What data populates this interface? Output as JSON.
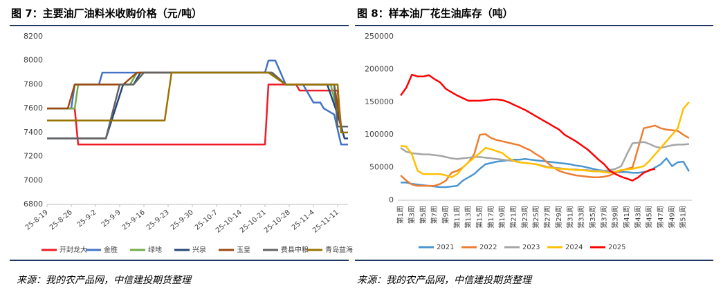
{
  "chart_data": [
    {
      "type": "line",
      "title": "图 7：主要油厂油料米收购价格（元/吨）",
      "source": "来源：我的农产品网，中信建投期货整理",
      "xlim": [
        "25-8-19",
        "25-11-14"
      ],
      "xticks": [
        "25-8-19",
        "25-8-26",
        "25-9-2",
        "25-9-9",
        "25-9-16",
        "25-9-23",
        "25-9-30",
        "25-10-7",
        "25-10-14",
        "25-10-21",
        "25-10-28",
        "25-11-4",
        "25-11-11"
      ],
      "ylim": [
        6800,
        8200
      ],
      "yticks": [
        6800,
        7000,
        7200,
        7400,
        7600,
        7800,
        8000,
        8200
      ],
      "series": [
        {
          "name": "开封龙大",
          "color": "#ee1c25",
          "x": [
            "25-8-19",
            "25-8-27",
            "25-8-28",
            "25-10-21",
            "25-10-22",
            "25-10-30",
            "25-10-31",
            "25-11-11",
            "25-11-12",
            "25-11-14"
          ],
          "values": [
            7600,
            7600,
            7300,
            7300,
            7800,
            7800,
            7750,
            7750,
            7450,
            7450
          ]
        },
        {
          "name": "金胜",
          "color": "#4472c4",
          "x": [
            "25-8-19",
            "25-8-26",
            "25-8-27",
            "25-9-3",
            "25-9-4",
            "25-10-21",
            "25-10-22",
            "25-10-24",
            "25-10-27",
            "25-11-1",
            "25-11-4",
            "25-11-6",
            "25-11-7",
            "25-11-10",
            "25-11-12",
            "25-11-14"
          ],
          "values": [
            7600,
            7600,
            7800,
            7800,
            7900,
            7900,
            8000,
            8000,
            7800,
            7800,
            7650,
            7650,
            7600,
            7550,
            7300,
            7300
          ]
        },
        {
          "name": "绿地",
          "color": "#70ad47",
          "x": [
            "25-8-19",
            "25-8-27",
            "25-8-28",
            "25-9-12",
            "25-9-14",
            "25-10-22",
            "25-10-27",
            "25-11-9",
            "25-11-12",
            "25-11-14"
          ],
          "values": [
            7600,
            7600,
            7800,
            7800,
            7900,
            7900,
            7800,
            7800,
            7450,
            7450
          ]
        },
        {
          "name": "兴泉",
          "color": "#264478",
          "x": [
            "25-8-19",
            "25-9-5",
            "25-9-10",
            "25-9-13",
            "25-9-15",
            "25-10-23",
            "25-10-27",
            "25-11-8",
            "25-11-11",
            "25-11-13",
            "25-11-14"
          ],
          "values": [
            7350,
            7350,
            7800,
            7800,
            7900,
            7900,
            7800,
            7800,
            7550,
            7350,
            7350
          ]
        },
        {
          "name": "玉皇",
          "color": "#9e480e",
          "x": [
            "25-8-19",
            "25-8-25",
            "25-8-27",
            "25-9-10",
            "25-9-14",
            "25-10-23",
            "25-10-27",
            "25-11-10",
            "25-11-12",
            "25-11-14"
          ],
          "values": [
            7600,
            7600,
            7800,
            7800,
            7900,
            7900,
            7800,
            7800,
            7450,
            7450
          ]
        },
        {
          "name": "费县中粮",
          "color": "#636363",
          "x": [
            "25-8-19",
            "25-9-5",
            "25-9-9",
            "25-9-13",
            "25-9-16",
            "25-10-23",
            "25-10-27",
            "25-11-10",
            "25-11-11",
            "25-11-14"
          ],
          "values": [
            7350,
            7350,
            7800,
            7800,
            7900,
            7900,
            7800,
            7800,
            7450,
            7450
          ]
        },
        {
          "name": "青岛益海",
          "color": "#997300",
          "x": [
            "25-8-19",
            "25-9-22",
            "25-9-24",
            "25-10-22",
            "25-10-27",
            "25-11-11",
            "25-11-12",
            "25-11-14"
          ],
          "values": [
            7500,
            7500,
            7900,
            7900,
            7800,
            7800,
            7400,
            7400
          ]
        }
      ]
    },
    {
      "type": "line",
      "title": "图 8：样本油厂花生油库存（吨）",
      "source": "来源：我的农产品网，中信建投期货整理",
      "categories": [
        "第1周",
        null,
        "第3周",
        null,
        "第5周",
        null,
        "第7周",
        null,
        "第9周",
        null,
        "第11周",
        null,
        "第13周",
        null,
        "第15周",
        null,
        "第17周",
        null,
        "第19周",
        null,
        "第21周",
        null,
        "第23周",
        null,
        "第25周",
        null,
        "第27周",
        null,
        "第29周",
        null,
        "第31周",
        null,
        "第33周",
        null,
        "第35周",
        null,
        "第37周",
        null,
        "第39周",
        null,
        "第41周",
        null,
        "第43周",
        null,
        "第45周",
        null,
        "第47周",
        null,
        "第49周",
        null,
        "第51周",
        null
      ],
      "ylim": [
        0,
        250000
      ],
      "yticks": [
        0,
        50000,
        100000,
        150000,
        200000,
        250000
      ],
      "series": [
        {
          "name": "2021",
          "color": "#4a96d2",
          "values": [
            27000,
            27000,
            25000,
            24000,
            23000,
            22000,
            21000,
            20000,
            20000,
            21000,
            22000,
            30000,
            35000,
            40000,
            48000,
            55000,
            57000,
            59000,
            60000,
            61000,
            62000,
            62000,
            63000,
            62000,
            61000,
            60000,
            59000,
            58000,
            57000,
            56000,
            55000,
            53000,
            52000,
            50000,
            48000,
            46000,
            45000,
            44000,
            43000,
            43000,
            43000,
            42000,
            42000,
            43000,
            45000,
            50000,
            55000,
            64000,
            52000,
            58000,
            59000,
            44000
          ]
        },
        {
          "name": "2022",
          "color": "#ed7d31",
          "values": [
            38000,
            30000,
            24000,
            22000,
            22000,
            22000,
            22000,
            25000,
            30000,
            42000,
            45000,
            50000,
            58000,
            70000,
            100000,
            101000,
            95000,
            92000,
            90000,
            88000,
            86000,
            84000,
            80000,
            76000,
            70000,
            65000,
            57000,
            50000,
            45000,
            42000,
            40000,
            38000,
            37000,
            36000,
            35000,
            35000,
            36000,
            38000,
            42000,
            45000,
            48000,
            50000,
            80000,
            110000,
            112000,
            114000,
            110000,
            108000,
            107000,
            106000,
            100000,
            95000
          ]
        },
        {
          "name": "2023",
          "color": "#a5a5a5",
          "values": [
            80000,
            74000,
            72000,
            71000,
            70000,
            70000,
            69000,
            68000,
            66000,
            64000,
            63000,
            64000,
            65000,
            66000,
            66000,
            65000,
            64000,
            63000,
            62000,
            61000,
            60000,
            58000,
            57000,
            56000,
            55000,
            53000,
            51000,
            50000,
            49000,
            48000,
            47000,
            47000,
            46000,
            46000,
            45000,
            45000,
            45000,
            46000,
            48000,
            52000,
            70000,
            87000,
            88000,
            89000,
            86000,
            82000,
            80000,
            82000,
            84000,
            85000,
            85000,
            86000
          ]
        },
        {
          "name": "2024",
          "color": "#ffc000",
          "values": [
            83000,
            82000,
            70000,
            45000,
            40000,
            40000,
            40000,
            40000,
            38000,
            35000,
            40000,
            50000,
            58000,
            65000,
            72000,
            80000,
            78000,
            75000,
            72000,
            65000,
            60000,
            58000,
            57000,
            56000,
            55000,
            52000,
            50000,
            49000,
            48000,
            48000,
            47000,
            46000,
            46000,
            45000,
            44000,
            44000,
            43000,
            42000,
            44000,
            46000,
            47000,
            48000,
            50000,
            52000,
            60000,
            70000,
            80000,
            90000,
            100000,
            110000,
            140000,
            150000
          ]
        },
        {
          "name": "2025",
          "color": "#ff0000",
          "values": [
            160000,
            172000,
            192000,
            189000,
            189000,
            191000,
            185000,
            180000,
            170000,
            165000,
            160000,
            156000,
            152000,
            152000,
            152000,
            153000,
            154000,
            154000,
            153000,
            150000,
            146000,
            142000,
            138000,
            133000,
            128000,
            123000,
            118000,
            113000,
            108000,
            100000,
            95000,
            90000,
            84000,
            78000,
            70000,
            62000,
            55000,
            45000,
            40000,
            36000,
            33000,
            30000,
            35000,
            42000,
            46000,
            48000,
            null,
            null,
            null,
            null,
            null,
            null
          ]
        }
      ]
    }
  ]
}
